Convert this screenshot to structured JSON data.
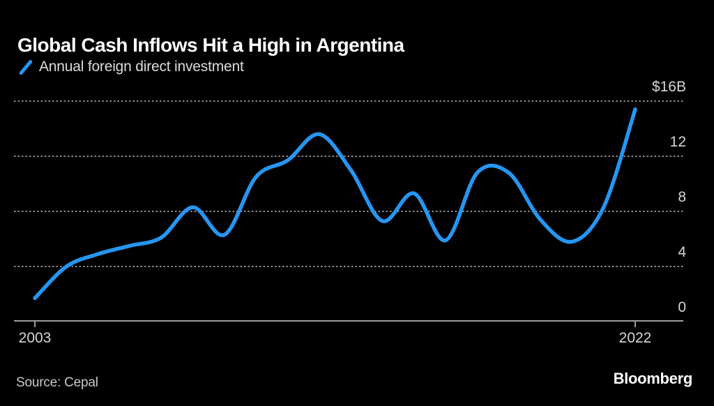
{
  "header": {
    "title": "Global Cash Inflows Hit a High in Argentina",
    "legend": {
      "label": "Annual foreign direct investment"
    }
  },
  "chart_data": {
    "type": "line",
    "title": "Global Cash Inflows Hit a High in Argentina",
    "series_name": "Annual foreign direct investment",
    "unit": "USD billions",
    "x": [
      2003,
      2004,
      2005,
      2006,
      2007,
      2008,
      2009,
      2010,
      2011,
      2012,
      2013,
      2014,
      2015,
      2016,
      2017,
      2018,
      2019,
      2020,
      2021,
      2022
    ],
    "values": [
      1.7,
      4.0,
      4.9,
      5.5,
      6.1,
      8.3,
      6.3,
      10.5,
      11.7,
      13.6,
      11.0,
      7.3,
      9.3,
      5.9,
      10.8,
      10.8,
      7.4,
      5.8,
      8.3,
      15.4
    ],
    "xlim": [
      2003,
      2022
    ],
    "ylim": [
      0,
      16
    ],
    "xticks": [
      {
        "year": 2003,
        "label": "2003"
      },
      {
        "year": 2022,
        "label": "2022"
      }
    ],
    "yticks": [
      {
        "value": 16,
        "label": "$16B"
      },
      {
        "value": 12,
        "label": "12"
      },
      {
        "value": 8,
        "label": "8"
      },
      {
        "value": 4,
        "label": "4"
      },
      {
        "value": 0,
        "label": "0"
      }
    ],
    "grid": "horizontal-dotted",
    "legend_position": "top-left",
    "smoothing": "spline",
    "line_color": "#2696f2",
    "grid_color": "#8a8a8a",
    "axis_color": "#9e9e9e",
    "background_color": "#000000",
    "title_color": "#ffffff",
    "label_color": "#d6d6d6"
  },
  "footer": {
    "source": "Source: Cepal",
    "brand": "Bloomberg"
  }
}
